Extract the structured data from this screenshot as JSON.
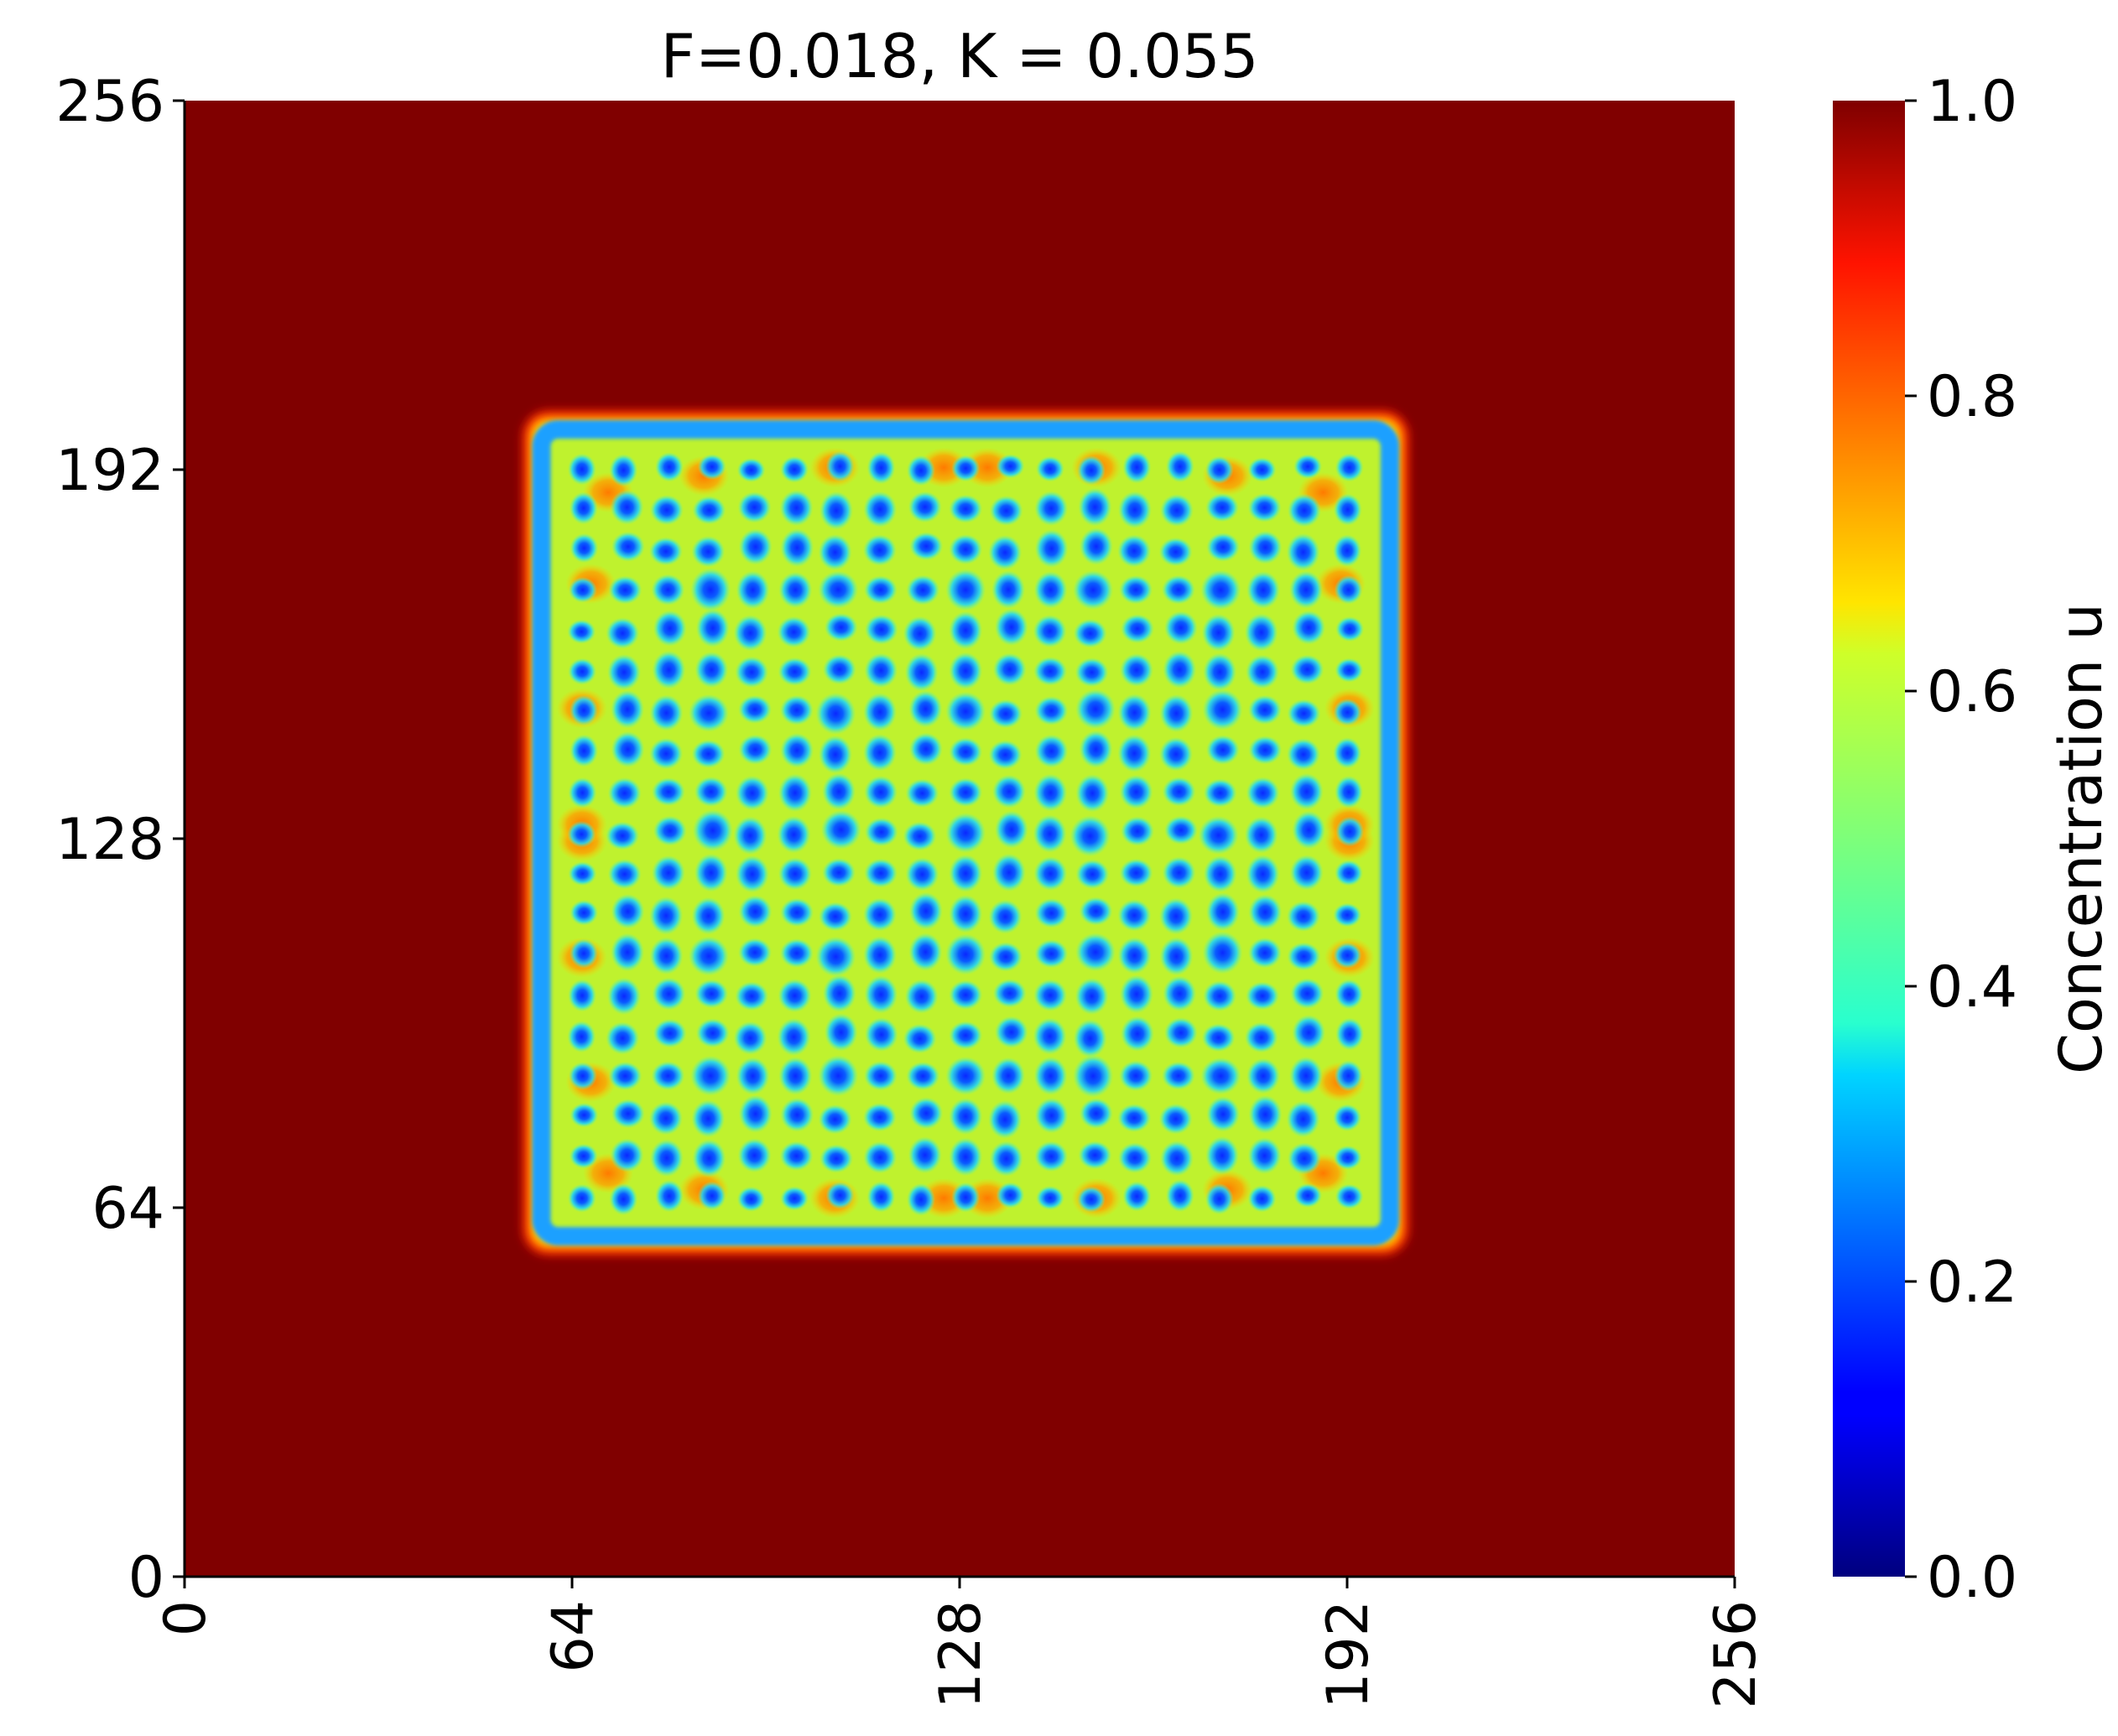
{
  "chart_data": {
    "type": "heatmap",
    "title": "F=0.018, K = 0.055",
    "xlabel": "",
    "ylabel": "",
    "xlim": [
      0,
      256
    ],
    "ylim": [
      0,
      256
    ],
    "x_ticks": [
      "0",
      "64",
      "128",
      "192",
      "256"
    ],
    "y_ticks": [
      "0",
      "64",
      "128",
      "192",
      "256"
    ],
    "colormap": "jet",
    "background_value": 1.0,
    "background_color": "#800000",
    "pattern_region": {
      "x": [
        57,
        201
      ],
      "y": [
        57,
        201
      ]
    },
    "pattern": "Gray-Scott reaction-diffusion: lattice of low-u spots (about 0.2) on a yellow-green field (about 0.6), with blue rims and orange patches (about 0.8) along the square border, symmetric about the center",
    "colorbar": {
      "label": "Concentration u",
      "range": [
        0.0,
        1.0
      ],
      "ticks": [
        "0.0",
        "0.2",
        "0.4",
        "0.6",
        "0.8",
        "1.0"
      ],
      "position": "right"
    }
  }
}
